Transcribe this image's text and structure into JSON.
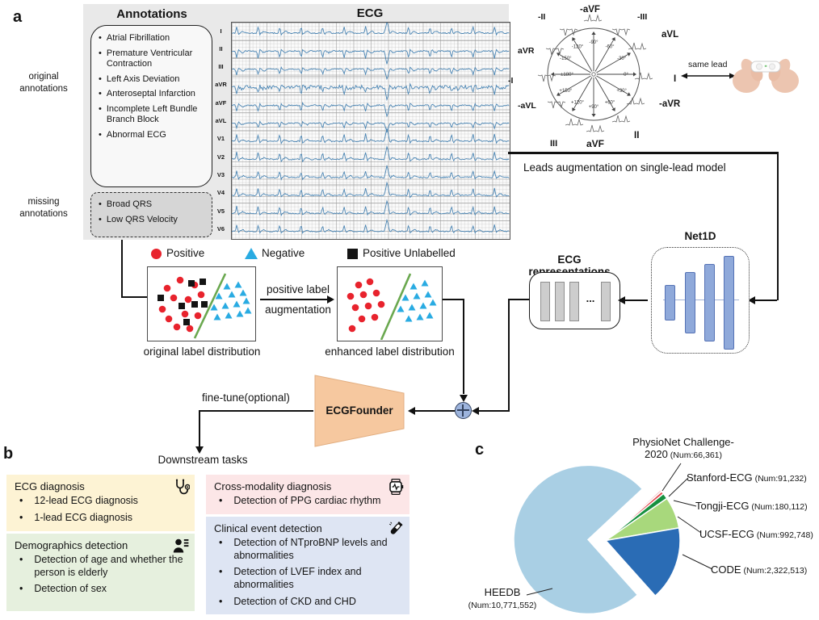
{
  "panel_labels": {
    "a": "a",
    "b": "b",
    "c": "c"
  },
  "panel_a": {
    "annotations_title": "Annotations",
    "original_annotations_label": "original annotations",
    "missing_annotations_label": "missing annotations",
    "original_annotations": [
      "Atrial Fibrillation",
      "Premature Ventricular Contraction",
      "Left Axis Deviation",
      "Anteroseptal Infarction",
      "Incomplete Left Bundle Branch Block",
      "Abnormal ECG"
    ],
    "missing_annotations": [
      "Broad QRS",
      "Low QRS Velocity"
    ],
    "ecg_title": "ECG",
    "ecg_leads": [
      "I",
      "II",
      "III",
      "aVR",
      "aVF",
      "aVL",
      "V1",
      "V2",
      "V3",
      "V4",
      "V5",
      "V6"
    ],
    "lead_circle": {
      "angle_labels": [
        "-90°",
        "-60°",
        "-30°",
        "0°",
        "+30°",
        "+60°",
        "+90°",
        "+120°",
        "+150°",
        "±180°",
        "-150°",
        "-120°"
      ],
      "outer_lead_labels": [
        "-aVF",
        "-II",
        "-III",
        "aVL",
        "aVR",
        "-I",
        "I",
        "-aVL",
        "-aVR",
        "III",
        "aVF",
        "II"
      ],
      "same_lead_label": "same lead"
    },
    "leads_augmentation_label": "Leads augmentation on single-lead model",
    "net1d_label": "Net1D",
    "representations_label": "ECG representations",
    "representations_dots": "...",
    "legend": [
      {
        "label": "Positive",
        "shape": "circle",
        "color": "#e8232d"
      },
      {
        "label": "Negative",
        "shape": "triangle",
        "color": "#29abe2"
      },
      {
        "label": "Positive Unlabelled",
        "shape": "square",
        "color": "#141414"
      }
    ],
    "scatter_arrow_label": [
      "positive label",
      "augmentation"
    ],
    "scatter_original_caption": "original label distribution",
    "scatter_enhanced_caption": "enhanced label distribution",
    "scatter": {
      "original": {
        "positive": [
          [
            40,
            16
          ],
          [
            24,
            26
          ],
          [
            58,
            22
          ],
          [
            32,
            38
          ],
          [
            50,
            40
          ],
          [
            18,
            52
          ],
          [
            66,
            34
          ],
          [
            46,
            58
          ],
          [
            26,
            64
          ],
          [
            62,
            60
          ],
          [
            36,
            74
          ],
          [
            52,
            76
          ]
        ],
        "unlabelled": [
          [
            54,
            20
          ],
          [
            68,
            18
          ],
          [
            16,
            38
          ],
          [
            58,
            46
          ],
          [
            42,
            48
          ],
          [
            70,
            46
          ],
          [
            48,
            68
          ]
        ],
        "negative": [
          [
            98,
            24
          ],
          [
            112,
            22
          ],
          [
            88,
            36
          ],
          [
            104,
            34
          ],
          [
            118,
            32
          ],
          [
            82,
            50
          ],
          [
            96,
            48
          ],
          [
            110,
            46
          ],
          [
            122,
            42
          ],
          [
            86,
            62
          ],
          [
            100,
            60
          ],
          [
            114,
            58
          ],
          [
            124,
            54
          ]
        ],
        "boundary": [
          [
            58,
            88
          ],
          [
            96,
            8
          ]
        ]
      },
      "enhanced": {
        "positive": [
          [
            26,
            22
          ],
          [
            40,
            18
          ],
          [
            16,
            36
          ],
          [
            32,
            34
          ],
          [
            48,
            32
          ],
          [
            22,
            50
          ],
          [
            38,
            48
          ],
          [
            54,
            46
          ],
          [
            30,
            64
          ],
          [
            46,
            62
          ],
          [
            18,
            76
          ]
        ],
        "negative": [
          [
            94,
            24
          ],
          [
            108,
            20
          ],
          [
            84,
            38
          ],
          [
            98,
            36
          ],
          [
            112,
            34
          ],
          [
            78,
            52
          ],
          [
            92,
            50
          ],
          [
            106,
            48
          ],
          [
            118,
            44
          ],
          [
            88,
            64
          ],
          [
            102,
            62
          ],
          [
            114,
            60
          ]
        ],
        "boundary": [
          [
            54,
            90
          ],
          [
            90,
            8
          ]
        ]
      }
    },
    "finetune_label": "fine-tune(optional)",
    "ecgfounder_label": "ECGFounder",
    "colors": {
      "ecgfounder_fill": "#f6c89f",
      "net1d_bar": "#8fa9da",
      "boundary_line": "#6aa84f",
      "ecg_trace": "#4a85b4",
      "plus_node": "#9db4dd"
    }
  },
  "panel_b": {
    "title": "Downstream tasks",
    "cards": [
      {
        "id": "ecg-diagnosis",
        "title": "ECG diagnosis",
        "icon": "stethoscope-icon",
        "color": "#fdf3d4",
        "items": [
          "12-lead ECG diagnosis",
          "1-lead ECG diagnosis"
        ]
      },
      {
        "id": "cross-modality",
        "title": "Cross-modality diagnosis",
        "icon": "smartwatch-icon",
        "color": "#fce6e7",
        "items": [
          "Detection of PPG cardiac rhythm"
        ]
      },
      {
        "id": "demographics",
        "title": "Demographics detection",
        "icon": "person-icon",
        "color": "#e6f0de",
        "items": [
          "Detection of age and whether the person is elderly",
          "Detection of sex"
        ]
      },
      {
        "id": "clinical-event",
        "title": "Clinical event detection",
        "icon": "test-tube-icon",
        "color": "#dee5f3",
        "items": [
          "Detection of NTproBNP levels and abnormalities",
          "Detection of LVEF index and abnormalities",
          "Detection of CKD and CHD"
        ]
      }
    ]
  },
  "panel_c": {
    "chart_data": {
      "type": "pie",
      "labels": [
        "PhysioNet Challenge-2020",
        "Stanford-ECG",
        "Tongji-ECG",
        "UCSF-ECG",
        "CODE",
        "HEEDB"
      ],
      "values": [
        66361,
        91232,
        180112,
        992748,
        2322513,
        10771552
      ],
      "num_labels": [
        "(Num:66,361)",
        "(Num:91,232)",
        "(Num:180,112)",
        "(Num:992,748)",
        "(Num:2,322,513)",
        "(Num:10,771,552)"
      ],
      "colors": [
        "#f5bdc5",
        "#e0484e",
        "#17903f",
        "#a8d87c",
        "#2a6cb5",
        "#a9cfe4"
      ],
      "start_angle_deg": 43,
      "direction": "clockwise",
      "exploded": true,
      "legend_position": "outside-labels"
    }
  }
}
